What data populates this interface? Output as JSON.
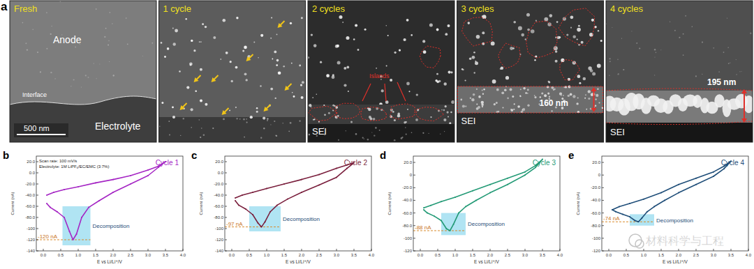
{
  "micrograph_panel": "a",
  "micrographs": [
    {
      "title": "Fresh",
      "labels": [
        "Anode",
        "Interface",
        "Electrolyte"
      ],
      "scale_bar": "500 nm"
    },
    {
      "title": "1 cycle",
      "labels": []
    },
    {
      "title": "2 cycles",
      "labels": [
        "Islands",
        "SEI"
      ]
    },
    {
      "title": "3 cycles",
      "labels": [
        "SEI"
      ],
      "thickness": "160 nm"
    },
    {
      "title": "4 cycles",
      "labels": [
        "SEI"
      ],
      "thickness": "195 nm"
    }
  ],
  "watermark": "材料科学与工程",
  "chart_data": [
    {
      "type": "line",
      "panel": "b",
      "title": "Cycle 1",
      "color": "#a526c4",
      "xlabel": "E vs Li/Li⁺/V",
      "ylabel": "Current (nA)",
      "notes": [
        "Scan rate: 100 mV/s",
        "Electrolyte: 1M LiPF₆/EC/EMC (3:7%)"
      ],
      "x": [
        0.1,
        0.3,
        0.6,
        1.0,
        1.5,
        2.0,
        2.5,
        3.0,
        3.3,
        3.5,
        3.3,
        3.0,
        2.5,
        2.0,
        1.6,
        1.3,
        1.1,
        0.95,
        0.85,
        0.75,
        0.6,
        0.4,
        0.2,
        0.1
      ],
      "values": [
        -40,
        -35,
        -30,
        -25,
        -18,
        -12,
        -5,
        5,
        12,
        20,
        10,
        -5,
        -20,
        -35,
        -50,
        -62,
        -80,
        -110,
        -120,
        -105,
        -80,
        -70,
        -62,
        -55
      ],
      "xlim": [
        -0.2,
        4.0
      ],
      "xticks": [
        {
          "value": 0,
          "label": "0.0"
        },
        {
          "value": 0.5,
          "label": "0.5"
        },
        {
          "value": 1,
          "label": "1.0"
        },
        {
          "value": 1.5,
          "label": "1.5"
        },
        {
          "value": 2,
          "label": "2.0"
        },
        {
          "value": 2.5,
          "label": "2.5"
        },
        {
          "value": 3,
          "label": "3.0"
        },
        {
          "value": 3.5,
          "label": "3.5"
        },
        {
          "value": 4,
          "label": "4.0"
        }
      ],
      "ylim": [
        -140,
        30
      ],
      "yticks": [
        -140,
        -120,
        -100,
        {
          "value": -80,
          "label": "-80.0"
        },
        {
          "value": -60,
          "label": "-60.0"
        },
        {
          "value": -40,
          "label": "-40.0"
        },
        {
          "value": -20,
          "label": "-20.0"
        },
        {
          "value": 0,
          "label": "0.0"
        },
        {
          "value": 20,
          "label": "20.0"
        }
      ],
      "peak": {
        "value": -120,
        "label": "-120 nA"
      },
      "highlight": {
        "x": [
          0.55,
          1.35
        ],
        "y": [
          -130,
          -60
        ],
        "label": "Decomposition"
      },
      "grid": false
    },
    {
      "type": "line",
      "panel": "c",
      "title": "Cycle 2",
      "color": "#7a1f3d",
      "xlabel": "E vs Li/Li⁺/V",
      "ylabel": "Current (nA)",
      "x": [
        0.1,
        0.3,
        0.6,
        1.0,
        1.5,
        2.0,
        2.5,
        3.0,
        3.3,
        3.5,
        3.3,
        3.0,
        2.5,
        2.0,
        1.6,
        1.3,
        1.1,
        0.95,
        0.85,
        0.75,
        0.6,
        0.4,
        0.2,
        0.1
      ],
      "values": [
        -45,
        -40,
        -35,
        -28,
        -20,
        -12,
        -3,
        8,
        14,
        18,
        8,
        -8,
        -22,
        -35,
        -47,
        -58,
        -70,
        -88,
        -97,
        -90,
        -75,
        -65,
        -58,
        -50
      ],
      "xlim": [
        -0.2,
        4.0
      ],
      "xticks": [
        {
          "value": 0,
          "label": "0.0"
        },
        {
          "value": 0.5,
          "label": "0.5"
        },
        {
          "value": 1,
          "label": "1.0"
        },
        {
          "value": 1.5,
          "label": "1.5"
        },
        {
          "value": 2,
          "label": "2.0"
        },
        {
          "value": 2.5,
          "label": "2.5"
        },
        {
          "value": 3,
          "label": "3.0"
        },
        {
          "value": 3.5,
          "label": "3.5"
        },
        {
          "value": 4,
          "label": "4.0"
        }
      ],
      "ylim": [
        -140,
        30
      ],
      "yticks": [
        -140,
        -120,
        -100,
        {
          "value": -80,
          "label": "-80.0"
        },
        {
          "value": -60,
          "label": "-60.0"
        },
        {
          "value": -40,
          "label": "-40.0"
        },
        {
          "value": -20,
          "label": "-20.0"
        },
        {
          "value": 0,
          "label": "0.0"
        },
        {
          "value": 20,
          "label": "20.0"
        }
      ],
      "peak": {
        "value": -97,
        "label": "-97 nA"
      },
      "highlight": {
        "x": [
          0.5,
          1.4
        ],
        "y": [
          -105,
          -60
        ],
        "label": "Decomposition"
      },
      "grid": false
    },
    {
      "type": "line",
      "panel": "d",
      "title": "Cycle 3",
      "color": "#239a76",
      "xlabel": "E vs Li/Li⁺/V",
      "ylabel": "Current (nA)",
      "x": [
        0.1,
        0.3,
        0.6,
        1.0,
        1.5,
        2.0,
        2.5,
        3.0,
        3.3,
        3.5,
        3.3,
        3.0,
        2.5,
        2.0,
        1.6,
        1.3,
        1.1,
        0.95,
        0.85,
        0.75,
        0.6,
        0.4,
        0.2,
        0.1
      ],
      "values": [
        -52,
        -48,
        -42,
        -35,
        -25,
        -15,
        -5,
        5,
        15,
        25,
        12,
        0,
        -15,
        -28,
        -40,
        -50,
        -60,
        -78,
        -88,
        -85,
        -72,
        -65,
        -60,
        -55
      ],
      "xlim": [
        -0.2,
        4.0
      ],
      "xticks": [
        {
          "value": 0,
          "label": "0.0"
        },
        {
          "value": 0.5,
          "label": "0.5"
        },
        {
          "value": 1,
          "label": "1.0"
        },
        {
          "value": 1.5,
          "label": "1.5"
        },
        {
          "value": 2,
          "label": "2.0"
        },
        {
          "value": 2.5,
          "label": "2.5"
        },
        {
          "value": 3,
          "label": "3.0"
        },
        {
          "value": 3.5,
          "label": "3.5"
        },
        {
          "value": 4,
          "label": "4.0"
        }
      ],
      "ylim": [
        -120,
        30
      ],
      "yticks": [
        -120,
        -100,
        {
          "value": -80,
          "label": "-80.0"
        },
        {
          "value": -60,
          "label": "-60.0"
        },
        {
          "value": -40,
          "label": "-40.0"
        },
        {
          "value": -20,
          "label": "-20.0"
        },
        0,
        {
          "value": 20,
          "label": "20.0"
        }
      ],
      "peak": {
        "value": -88,
        "label": "-88 nA"
      },
      "highlight": {
        "x": [
          0.6,
          1.3
        ],
        "y": [
          -95,
          -60
        ],
        "label": "Decomposition"
      },
      "grid": false
    },
    {
      "type": "line",
      "panel": "e",
      "title": "Cycle 4",
      "color": "#1f4e79",
      "xlabel": "E vs Li/Li⁺/V",
      "ylabel": "Current (nA)",
      "x": [
        0.1,
        0.3,
        0.6,
        1.0,
        1.5,
        2.0,
        2.5,
        3.0,
        3.3,
        3.5,
        3.3,
        3.0,
        2.5,
        2.0,
        1.6,
        1.3,
        1.1,
        0.95,
        0.85,
        0.75,
        0.6,
        0.4,
        0.2,
        0.1
      ],
      "values": [
        -55,
        -50,
        -45,
        -38,
        -28,
        -15,
        -5,
        5,
        14,
        22,
        10,
        -2,
        -15,
        -28,
        -40,
        -50,
        -58,
        -68,
        -74,
        -72,
        -66,
        -62,
        -58,
        -55
      ],
      "xlim": [
        -0.2,
        4.0
      ],
      "xticks": [
        {
          "value": 0,
          "label": "0.0"
        },
        {
          "value": 0.5,
          "label": "0.5"
        },
        {
          "value": 1,
          "label": "1.0"
        },
        {
          "value": 1.5,
          "label": "1.5"
        },
        {
          "value": 2,
          "label": "2.0"
        },
        {
          "value": 2.5,
          "label": "2.5"
        },
        {
          "value": 3,
          "label": "3.0"
        },
        {
          "value": 3.5,
          "label": "3.5"
        },
        {
          "value": 4,
          "label": "4.0"
        }
      ],
      "ylim": [
        -120,
        30
      ],
      "yticks": [
        -120,
        -100,
        {
          "value": -80,
          "label": "-80.0"
        },
        {
          "value": -60,
          "label": "-60.0"
        },
        {
          "value": -40,
          "label": "-40.0"
        },
        {
          "value": -20,
          "label": "-20.0"
        },
        0,
        {
          "value": 20,
          "label": "20.0"
        }
      ],
      "peak": {
        "value": -74,
        "label": "-74 nA"
      },
      "highlight": {
        "x": [
          0.6,
          1.3
        ],
        "y": [
          -80,
          -62
        ],
        "label": "Decomposition"
      },
      "grid": false
    }
  ]
}
